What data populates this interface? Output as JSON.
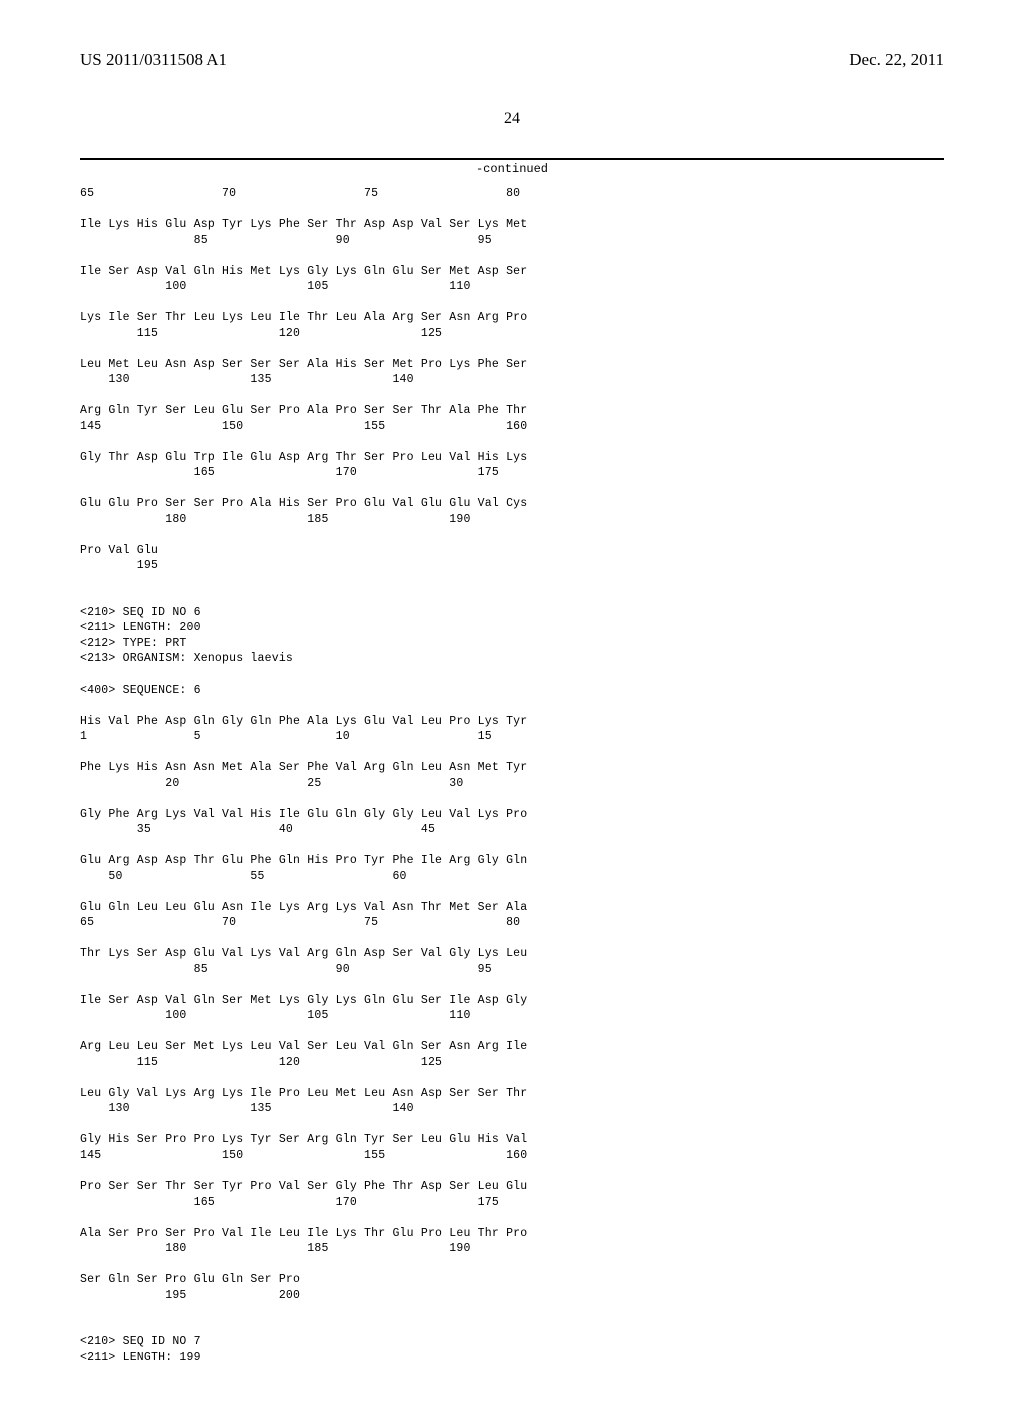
{
  "header": {
    "left": "US 2011/0311508 A1",
    "right": "Dec. 22, 2011"
  },
  "page_number": "24",
  "continued_label": "-continued",
  "seq5": {
    "rows": [
      {
        "nums": [
          "65",
          "",
          "",
          "",
          "",
          "70",
          "",
          "",
          "",
          "",
          "75",
          "",
          "",
          "",
          "",
          "80"
        ]
      },
      {
        "aa": [
          "Ile",
          "Lys",
          "His",
          "Glu",
          "Asp",
          "Tyr",
          "Lys",
          "Phe",
          "Ser",
          "Thr",
          "Asp",
          "Asp",
          "Val",
          "Ser",
          "Lys",
          "Met"
        ],
        "nums": [
          "",
          "",
          "",
          "",
          "85",
          "",
          "",
          "",
          "",
          "90",
          "",
          "",
          "",
          "",
          "95",
          ""
        ]
      },
      {
        "aa": [
          "Ile",
          "Ser",
          "Asp",
          "Val",
          "Gln",
          "His",
          "Met",
          "Lys",
          "Gly",
          "Lys",
          "Gln",
          "Glu",
          "Ser",
          "Met",
          "Asp",
          "Ser"
        ],
        "nums": [
          "",
          "",
          "",
          "100",
          "",
          "",
          "",
          "",
          "105",
          "",
          "",
          "",
          "",
          "110",
          "",
          ""
        ]
      },
      {
        "aa": [
          "Lys",
          "Ile",
          "Ser",
          "Thr",
          "Leu",
          "Lys",
          "Leu",
          "Ile",
          "Thr",
          "Leu",
          "Ala",
          "Arg",
          "Ser",
          "Asn",
          "Arg",
          "Pro"
        ],
        "nums": [
          "",
          "",
          "115",
          "",
          "",
          "",
          "",
          "120",
          "",
          "",
          "",
          "",
          "125",
          "",
          "",
          ""
        ]
      },
      {
        "aa": [
          "Leu",
          "Met",
          "Leu",
          "Asn",
          "Asp",
          "Ser",
          "Ser",
          "Ser",
          "Ala",
          "His",
          "Ser",
          "Met",
          "Pro",
          "Lys",
          "Phe",
          "Ser"
        ],
        "nums": [
          "",
          "130",
          "",
          "",
          "",
          "",
          "135",
          "",
          "",
          "",
          "",
          "140",
          "",
          "",
          "",
          ""
        ]
      },
      {
        "aa": [
          "Arg",
          "Gln",
          "Tyr",
          "Ser",
          "Leu",
          "Glu",
          "Ser",
          "Pro",
          "Ala",
          "Pro",
          "Ser",
          "Ser",
          "Thr",
          "Ala",
          "Phe",
          "Thr"
        ],
        "nums": [
          "145",
          "",
          "",
          "",
          "",
          "150",
          "",
          "",
          "",
          "",
          "155",
          "",
          "",
          "",
          "",
          "160"
        ]
      },
      {
        "aa": [
          "Gly",
          "Thr",
          "Asp",
          "Glu",
          "Trp",
          "Ile",
          "Glu",
          "Asp",
          "Arg",
          "Thr",
          "Ser",
          "Pro",
          "Leu",
          "Val",
          "His",
          "Lys"
        ],
        "nums": [
          "",
          "",
          "",
          "",
          "165",
          "",
          "",
          "",
          "",
          "170",
          "",
          "",
          "",
          "",
          "175",
          ""
        ]
      },
      {
        "aa": [
          "Glu",
          "Glu",
          "Pro",
          "Ser",
          "Ser",
          "Pro",
          "Ala",
          "His",
          "Ser",
          "Pro",
          "Glu",
          "Val",
          "Glu",
          "Glu",
          "Val",
          "Cys"
        ],
        "nums": [
          "",
          "",
          "",
          "180",
          "",
          "",
          "",
          "",
          "185",
          "",
          "",
          "",
          "",
          "190",
          "",
          ""
        ]
      },
      {
        "aa": [
          "Pro",
          "Val",
          "Glu"
        ],
        "nums": [
          "",
          "",
          "195"
        ]
      }
    ]
  },
  "seq6header": {
    "l1": "<210> SEQ ID NO 6",
    "l2": "<211> LENGTH: 200",
    "l3": "<212> TYPE: PRT",
    "l4": "<213> ORGANISM: Xenopus laevis",
    "l5": "<400> SEQUENCE: 6"
  },
  "seq6": {
    "rows": [
      {
        "aa": [
          "His",
          "Val",
          "Phe",
          "Asp",
          "Gln",
          "Gly",
          "Gln",
          "Phe",
          "Ala",
          "Lys",
          "Glu",
          "Val",
          "Leu",
          "Pro",
          "Lys",
          "Tyr"
        ],
        "nums": [
          "1",
          "",
          "",
          "",
          "5",
          "",
          "",
          "",
          "",
          "10",
          "",
          "",
          "",
          "",
          "15",
          ""
        ]
      },
      {
        "aa": [
          "Phe",
          "Lys",
          "His",
          "Asn",
          "Asn",
          "Met",
          "Ala",
          "Ser",
          "Phe",
          "Val",
          "Arg",
          "Gln",
          "Leu",
          "Asn",
          "Met",
          "Tyr"
        ],
        "nums": [
          "",
          "",
          "",
          "20",
          "",
          "",
          "",
          "",
          "25",
          "",
          "",
          "",
          "",
          "30",
          "",
          ""
        ]
      },
      {
        "aa": [
          "Gly",
          "Phe",
          "Arg",
          "Lys",
          "Val",
          "Val",
          "His",
          "Ile",
          "Glu",
          "Gln",
          "Gly",
          "Gly",
          "Leu",
          "Val",
          "Lys",
          "Pro"
        ],
        "nums": [
          "",
          "",
          "35",
          "",
          "",
          "",
          "",
          "40",
          "",
          "",
          "",
          "",
          "45",
          "",
          "",
          ""
        ]
      },
      {
        "aa": [
          "Glu",
          "Arg",
          "Asp",
          "Asp",
          "Thr",
          "Glu",
          "Phe",
          "Gln",
          "His",
          "Pro",
          "Tyr",
          "Phe",
          "Ile",
          "Arg",
          "Gly",
          "Gln"
        ],
        "nums": [
          "",
          "50",
          "",
          "",
          "",
          "",
          "55",
          "",
          "",
          "",
          "",
          "60",
          "",
          "",
          "",
          ""
        ]
      },
      {
        "aa": [
          "Glu",
          "Gln",
          "Leu",
          "Leu",
          "Glu",
          "Asn",
          "Ile",
          "Lys",
          "Arg",
          "Lys",
          "Val",
          "Asn",
          "Thr",
          "Met",
          "Ser",
          "Ala"
        ],
        "nums": [
          "65",
          "",
          "",
          "",
          "",
          "70",
          "",
          "",
          "",
          "",
          "75",
          "",
          "",
          "",
          "",
          "80"
        ]
      },
      {
        "aa": [
          "Thr",
          "Lys",
          "Ser",
          "Asp",
          "Glu",
          "Val",
          "Lys",
          "Val",
          "Arg",
          "Gln",
          "Asp",
          "Ser",
          "Val",
          "Gly",
          "Lys",
          "Leu"
        ],
        "nums": [
          "",
          "",
          "",
          "",
          "85",
          "",
          "",
          "",
          "",
          "90",
          "",
          "",
          "",
          "",
          "95",
          ""
        ]
      },
      {
        "aa": [
          "Ile",
          "Ser",
          "Asp",
          "Val",
          "Gln",
          "Ser",
          "Met",
          "Lys",
          "Gly",
          "Lys",
          "Gln",
          "Glu",
          "Ser",
          "Ile",
          "Asp",
          "Gly"
        ],
        "nums": [
          "",
          "",
          "",
          "100",
          "",
          "",
          "",
          "",
          "105",
          "",
          "",
          "",
          "",
          "110",
          "",
          ""
        ]
      },
      {
        "aa": [
          "Arg",
          "Leu",
          "Leu",
          "Ser",
          "Met",
          "Lys",
          "Leu",
          "Val",
          "Ser",
          "Leu",
          "Val",
          "Gln",
          "Ser",
          "Asn",
          "Arg",
          "Ile"
        ],
        "nums": [
          "",
          "",
          "115",
          "",
          "",
          "",
          "",
          "120",
          "",
          "",
          "",
          "",
          "125",
          "",
          "",
          ""
        ]
      },
      {
        "aa": [
          "Leu",
          "Gly",
          "Val",
          "Lys",
          "Arg",
          "Lys",
          "Ile",
          "Pro",
          "Leu",
          "Met",
          "Leu",
          "Asn",
          "Asp",
          "Ser",
          "Ser",
          "Thr"
        ],
        "nums": [
          "",
          "130",
          "",
          "",
          "",
          "",
          "135",
          "",
          "",
          "",
          "",
          "140",
          "",
          "",
          "",
          ""
        ]
      },
      {
        "aa": [
          "Gly",
          "His",
          "Ser",
          "Pro",
          "Pro",
          "Lys",
          "Tyr",
          "Ser",
          "Arg",
          "Gln",
          "Tyr",
          "Ser",
          "Leu",
          "Glu",
          "His",
          "Val"
        ],
        "nums": [
          "145",
          "",
          "",
          "",
          "",
          "150",
          "",
          "",
          "",
          "",
          "155",
          "",
          "",
          "",
          "",
          "160"
        ]
      },
      {
        "aa": [
          "Pro",
          "Ser",
          "Ser",
          "Thr",
          "Ser",
          "Tyr",
          "Pro",
          "Val",
          "Ser",
          "Gly",
          "Phe",
          "Thr",
          "Asp",
          "Ser",
          "Leu",
          "Glu"
        ],
        "nums": [
          "",
          "",
          "",
          "",
          "165",
          "",
          "",
          "",
          "",
          "170",
          "",
          "",
          "",
          "",
          "175",
          ""
        ]
      },
      {
        "aa": [
          "Ala",
          "Ser",
          "Pro",
          "Ser",
          "Pro",
          "Val",
          "Ile",
          "Leu",
          "Ile",
          "Lys",
          "Thr",
          "Glu",
          "Pro",
          "Leu",
          "Thr",
          "Pro"
        ],
        "nums": [
          "",
          "",
          "",
          "180",
          "",
          "",
          "",
          "",
          "185",
          "",
          "",
          "",
          "",
          "190",
          "",
          ""
        ]
      },
      {
        "aa": [
          "Ser",
          "Gln",
          "Ser",
          "Pro",
          "Glu",
          "Gln",
          "Ser",
          "Pro"
        ],
        "nums": [
          "",
          "",
          "",
          "195",
          "",
          "",
          "",
          "200"
        ]
      }
    ]
  },
  "seq7header": {
    "l1": "<210> SEQ ID NO 7",
    "l2": "<211> LENGTH: 199"
  }
}
